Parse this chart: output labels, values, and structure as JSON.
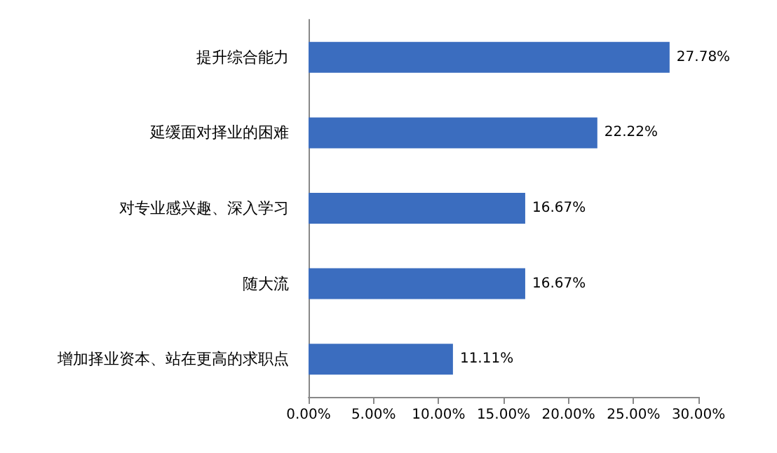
{
  "chart_data": {
    "type": "bar",
    "orientation": "horizontal",
    "categories": [
      "提升综合能力",
      "延缓面对择业的困难",
      "对专业感兴趣、深入学习",
      "随大流",
      "增加择业资本、站在更高的求职点"
    ],
    "values": [
      27.78,
      22.22,
      16.67,
      16.67,
      11.11
    ],
    "value_labels": [
      "27.78%",
      "22.22%",
      "16.67%",
      "16.67%",
      "11.11%"
    ],
    "color": "#3b6dbf",
    "xlim": [
      0,
      30
    ],
    "xticks": [
      {
        "value": 0,
        "label": "0.00%"
      },
      {
        "value": 5,
        "label": "5.00%"
      },
      {
        "value": 10,
        "label": "10.00%"
      },
      {
        "value": 15,
        "label": "15.00%"
      },
      {
        "value": 20,
        "label": "20.00%"
      },
      {
        "value": 25,
        "label": "25.00%"
      },
      {
        "value": 30,
        "label": "30.00%"
      }
    ],
    "grid": false
  }
}
